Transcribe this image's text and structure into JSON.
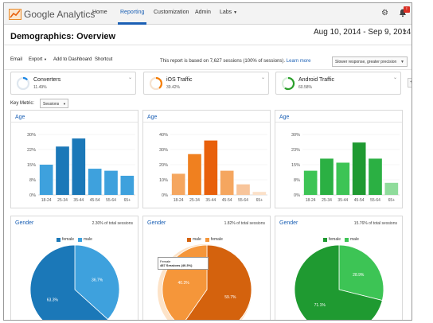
{
  "app": {
    "name": "Google Analytics"
  },
  "nav": {
    "items": [
      "Home",
      "Reporting",
      "Customization",
      "Admin",
      "Labs"
    ],
    "active": "Reporting"
  },
  "header": {
    "title": "Demographics: Overview",
    "date_range": "Aug 10, 2014 - Sep 9, 2014"
  },
  "toolbar": {
    "items": [
      "Email",
      "Export",
      "Add to Dashboard",
      "Shortcut"
    ],
    "note": "This report is based on 7,627 sessions (100% of sessions).",
    "learn_more": "Learn more",
    "precision": "Slower response, greater precision"
  },
  "segments": [
    {
      "name": "Converters",
      "pct": "11.49%",
      "color": "#1e88e5"
    },
    {
      "name": "iOS Traffic",
      "pct": "39.42%",
      "color": "#f57c00"
    },
    {
      "name": "Android Traffic",
      "pct": "60.58%",
      "color": "#2ca02c"
    }
  ],
  "key_metric": {
    "label": "Key Metric:",
    "value": "Sessions"
  },
  "age_title": "Age",
  "gender_title": "Gender",
  "colors": {
    "blue_dark": "#1b78b8",
    "blue_light": "#3ea1dd",
    "orange_dark": "#e8600b",
    "orange_light": "#f5963a",
    "green_dark": "#1f9a31",
    "green_light": "#3dc455"
  },
  "chart_data": [
    {
      "type": "bar",
      "title": "Age",
      "segment": "Converters",
      "categories": [
        "18-24",
        "25-34",
        "35-44",
        "45-54",
        "55-64",
        "65+"
      ],
      "values": [
        15,
        24,
        28,
        13,
        12,
        9.5
      ],
      "ylim": [
        0,
        30
      ],
      "yticks": [
        "0%",
        "8%",
        "15%",
        "22%",
        "30%"
      ],
      "colors": [
        "#3ea1dd",
        "#1b78b8",
        "#1b78b8",
        "#3ea1dd",
        "#3ea1dd",
        "#3ea1dd"
      ]
    },
    {
      "type": "bar",
      "title": "Age",
      "segment": "iOS Traffic",
      "categories": [
        "18-24",
        "25-34",
        "35-44",
        "45-54",
        "55-64",
        "65+"
      ],
      "values": [
        14,
        27,
        36,
        16,
        7,
        2
      ],
      "ylim": [
        0,
        40
      ],
      "yticks": [
        "0%",
        "10%",
        "20%",
        "30%",
        "40%"
      ],
      "colors": [
        "#f5a65f",
        "#f0801f",
        "#e8600b",
        "#f5a65f",
        "#f8c59b",
        "#fbe0c8"
      ]
    },
    {
      "type": "bar",
      "title": "Age",
      "segment": "Android Traffic",
      "categories": [
        "18-24",
        "25-34",
        "35-44",
        "45-54",
        "55-64",
        "65+"
      ],
      "values": [
        12,
        18,
        16,
        26,
        18,
        6
      ],
      "ylim": [
        0,
        30
      ],
      "yticks": [
        "0%",
        "8%",
        "15%",
        "23%",
        "30%"
      ],
      "colors": [
        "#3dc455",
        "#2bb043",
        "#3dc455",
        "#1f9a31",
        "#2bb043",
        "#8fdc9b"
      ]
    },
    {
      "type": "pie",
      "title": "Gender",
      "segment": "Converters",
      "note": "2.30% of total sessions",
      "labels": [
        "female",
        "male"
      ],
      "values": [
        36.7,
        63.3
      ],
      "value_labels": [
        "36.7%",
        "63.3%"
      ],
      "colors": [
        "#1b78b8",
        "#3ea1dd"
      ]
    },
    {
      "type": "pie",
      "title": "Gender",
      "segment": "iOS Traffic",
      "note": "1.82% of total sessions",
      "labels": [
        "male",
        "female"
      ],
      "values": [
        59.7,
        40.3
      ],
      "value_labels": [
        "59.7%",
        "40.3%"
      ],
      "colors": [
        "#d4620d",
        "#f5963a"
      ],
      "tooltip": {
        "label": "Female",
        "value": "487 Sessions (40.3%)"
      }
    },
    {
      "type": "pie",
      "title": "Gender",
      "segment": "Android Traffic",
      "note": "15.76% of total sessions",
      "labels": [
        "female",
        "male"
      ],
      "values": [
        28.9,
        71.1
      ],
      "value_labels": [
        "28.9%",
        "71.1%"
      ],
      "colors": [
        "#1f9a31",
        "#3dc455"
      ]
    }
  ]
}
